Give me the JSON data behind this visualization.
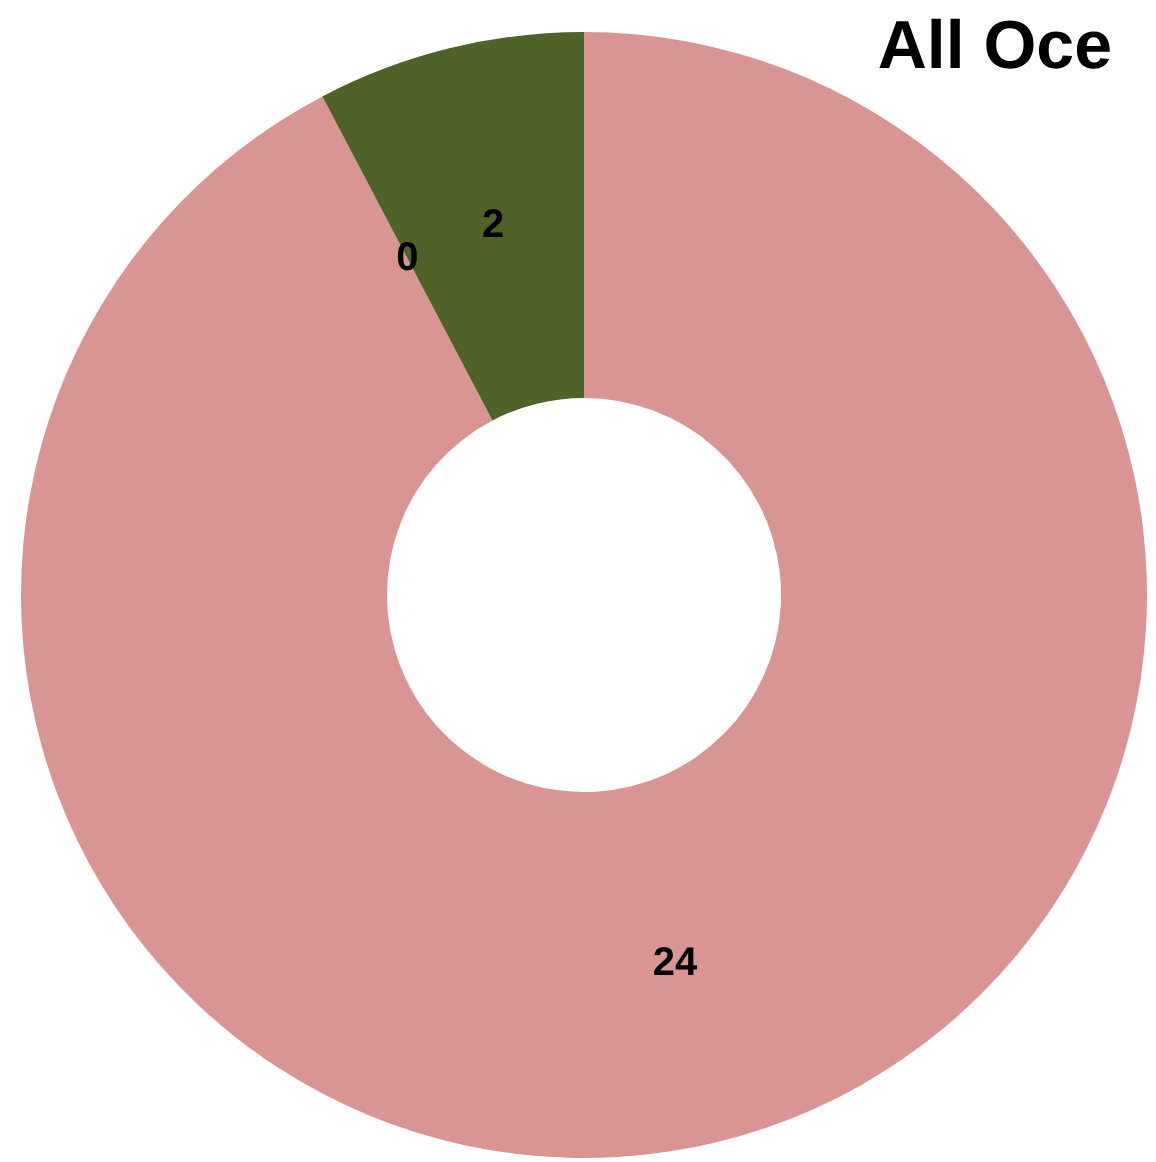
{
  "chart_data": {
    "type": "donut",
    "title": "All Oce",
    "categories": [
      null,
      null,
      null
    ],
    "values": [
      24,
      0,
      2
    ],
    "value_labels": [
      "24",
      "0",
      "2"
    ],
    "colors": [
      "#d99594",
      "#8064a2",
      "#4f6228"
    ],
    "legend": false
  }
}
